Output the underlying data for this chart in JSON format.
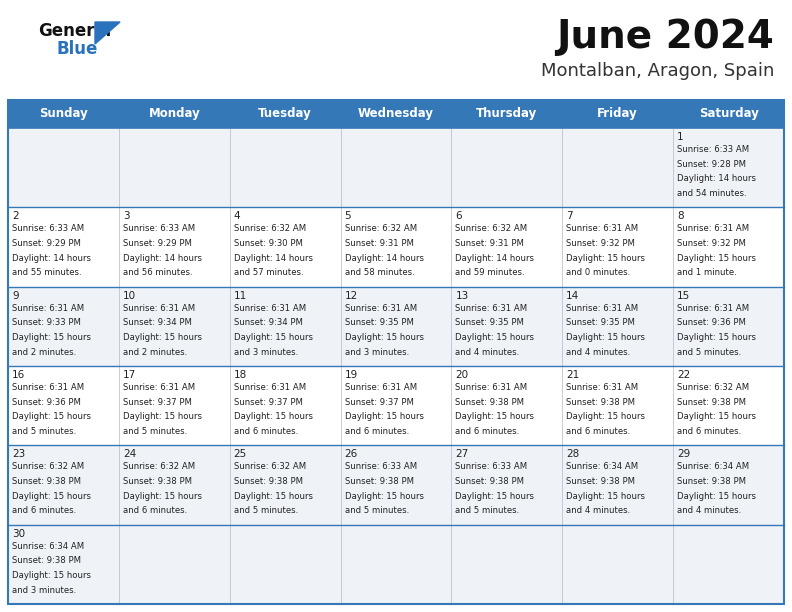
{
  "title": "June 2024",
  "subtitle": "Montalban, Aragon, Spain",
  "days_of_week": [
    "Sunday",
    "Monday",
    "Tuesday",
    "Wednesday",
    "Thursday",
    "Friday",
    "Saturday"
  ],
  "header_bg": "#3578b8",
  "header_text": "#ffffff",
  "row_bg": [
    "#eff3f8",
    "#ffffff",
    "#eff3f8",
    "#ffffff",
    "#eff3f8",
    "#eff3f8"
  ],
  "border_color": "#3578b8",
  "grid_color": "#aaaaaa",
  "text_color": "#222222",
  "calendar": [
    [
      null,
      null,
      null,
      null,
      null,
      null,
      {
        "day": "1",
        "sunrise": "6:33 AM",
        "sunset": "9:28 PM",
        "daylight": "14 hours",
        "daylight2": "and 54 minutes."
      }
    ],
    [
      {
        "day": "2",
        "sunrise": "6:33 AM",
        "sunset": "9:29 PM",
        "daylight": "14 hours",
        "daylight2": "and 55 minutes."
      },
      {
        "day": "3",
        "sunrise": "6:33 AM",
        "sunset": "9:29 PM",
        "daylight": "14 hours",
        "daylight2": "and 56 minutes."
      },
      {
        "day": "4",
        "sunrise": "6:32 AM",
        "sunset": "9:30 PM",
        "daylight": "14 hours",
        "daylight2": "and 57 minutes."
      },
      {
        "day": "5",
        "sunrise": "6:32 AM",
        "sunset": "9:31 PM",
        "daylight": "14 hours",
        "daylight2": "and 58 minutes."
      },
      {
        "day": "6",
        "sunrise": "6:32 AM",
        "sunset": "9:31 PM",
        "daylight": "14 hours",
        "daylight2": "and 59 minutes."
      },
      {
        "day": "7",
        "sunrise": "6:31 AM",
        "sunset": "9:32 PM",
        "daylight": "15 hours",
        "daylight2": "and 0 minutes."
      },
      {
        "day": "8",
        "sunrise": "6:31 AM",
        "sunset": "9:32 PM",
        "daylight": "15 hours",
        "daylight2": "and 1 minute."
      }
    ],
    [
      {
        "day": "9",
        "sunrise": "6:31 AM",
        "sunset": "9:33 PM",
        "daylight": "15 hours",
        "daylight2": "and 2 minutes."
      },
      {
        "day": "10",
        "sunrise": "6:31 AM",
        "sunset": "9:34 PM",
        "daylight": "15 hours",
        "daylight2": "and 2 minutes."
      },
      {
        "day": "11",
        "sunrise": "6:31 AM",
        "sunset": "9:34 PM",
        "daylight": "15 hours",
        "daylight2": "and 3 minutes."
      },
      {
        "day": "12",
        "sunrise": "6:31 AM",
        "sunset": "9:35 PM",
        "daylight": "15 hours",
        "daylight2": "and 3 minutes."
      },
      {
        "day": "13",
        "sunrise": "6:31 AM",
        "sunset": "9:35 PM",
        "daylight": "15 hours",
        "daylight2": "and 4 minutes."
      },
      {
        "day": "14",
        "sunrise": "6:31 AM",
        "sunset": "9:35 PM",
        "daylight": "15 hours",
        "daylight2": "and 4 minutes."
      },
      {
        "day": "15",
        "sunrise": "6:31 AM",
        "sunset": "9:36 PM",
        "daylight": "15 hours",
        "daylight2": "and 5 minutes."
      }
    ],
    [
      {
        "day": "16",
        "sunrise": "6:31 AM",
        "sunset": "9:36 PM",
        "daylight": "15 hours",
        "daylight2": "and 5 minutes."
      },
      {
        "day": "17",
        "sunrise": "6:31 AM",
        "sunset": "9:37 PM",
        "daylight": "15 hours",
        "daylight2": "and 5 minutes."
      },
      {
        "day": "18",
        "sunrise": "6:31 AM",
        "sunset": "9:37 PM",
        "daylight": "15 hours",
        "daylight2": "and 6 minutes."
      },
      {
        "day": "19",
        "sunrise": "6:31 AM",
        "sunset": "9:37 PM",
        "daylight": "15 hours",
        "daylight2": "and 6 minutes."
      },
      {
        "day": "20",
        "sunrise": "6:31 AM",
        "sunset": "9:38 PM",
        "daylight": "15 hours",
        "daylight2": "and 6 minutes."
      },
      {
        "day": "21",
        "sunrise": "6:31 AM",
        "sunset": "9:38 PM",
        "daylight": "15 hours",
        "daylight2": "and 6 minutes."
      },
      {
        "day": "22",
        "sunrise": "6:32 AM",
        "sunset": "9:38 PM",
        "daylight": "15 hours",
        "daylight2": "and 6 minutes."
      }
    ],
    [
      {
        "day": "23",
        "sunrise": "6:32 AM",
        "sunset": "9:38 PM",
        "daylight": "15 hours",
        "daylight2": "and 6 minutes."
      },
      {
        "day": "24",
        "sunrise": "6:32 AM",
        "sunset": "9:38 PM",
        "daylight": "15 hours",
        "daylight2": "and 6 minutes."
      },
      {
        "day": "25",
        "sunrise": "6:32 AM",
        "sunset": "9:38 PM",
        "daylight": "15 hours",
        "daylight2": "and 5 minutes."
      },
      {
        "day": "26",
        "sunrise": "6:33 AM",
        "sunset": "9:38 PM",
        "daylight": "15 hours",
        "daylight2": "and 5 minutes."
      },
      {
        "day": "27",
        "sunrise": "6:33 AM",
        "sunset": "9:38 PM",
        "daylight": "15 hours",
        "daylight2": "and 5 minutes."
      },
      {
        "day": "28",
        "sunrise": "6:34 AM",
        "sunset": "9:38 PM",
        "daylight": "15 hours",
        "daylight2": "and 4 minutes."
      },
      {
        "day": "29",
        "sunrise": "6:34 AM",
        "sunset": "9:38 PM",
        "daylight": "15 hours",
        "daylight2": "and 4 minutes."
      }
    ],
    [
      {
        "day": "30",
        "sunrise": "6:34 AM",
        "sunset": "9:38 PM",
        "daylight": "15 hours",
        "daylight2": "and 3 minutes."
      },
      null,
      null,
      null,
      null,
      null,
      null
    ]
  ]
}
